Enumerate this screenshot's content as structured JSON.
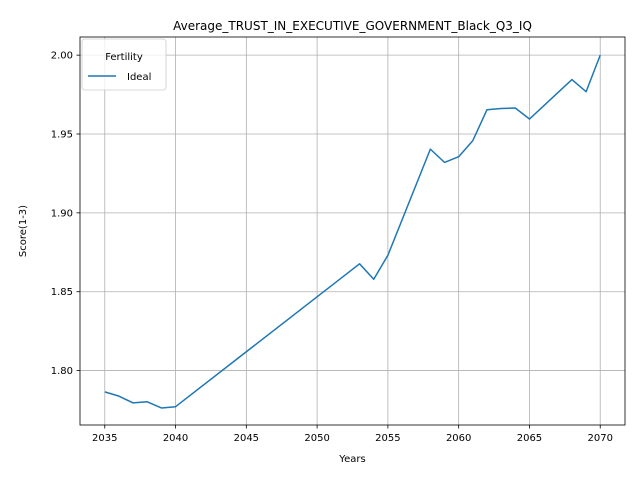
{
  "chart_data": {
    "type": "line",
    "title": "Average_TRUST_IN_EXECUTIVE_GOVERNMENT_Black_Q3_IQ",
    "xlabel": "Years",
    "ylabel": "Score(1-3)",
    "xlim": [
      2033.25,
      2071.75
    ],
    "ylim": [
      1.7655,
      2.0115
    ],
    "xticks": [
      2035,
      2040,
      2045,
      2050,
      2055,
      2060,
      2065,
      2070
    ],
    "yticks": [
      1.8,
      1.85,
      1.9,
      1.95,
      2.0
    ],
    "ytick_labels": [
      "1.80",
      "1.85",
      "1.90",
      "1.95",
      "2.00"
    ],
    "grid": true,
    "legend": {
      "title": "Fertility",
      "placement": "top-left"
    },
    "series": [
      {
        "name": "Ideal",
        "color": "#1f77b4",
        "x": [
          2035,
          2036,
          2037,
          2038,
          2039,
          2040,
          2053,
          2054,
          2055,
          2058,
          2059,
          2060,
          2061,
          2062,
          2063,
          2064,
          2065,
          2068,
          2069,
          2070
        ],
        "y": [
          1.7865,
          1.7838,
          1.7795,
          1.7802,
          1.7763,
          1.7771,
          1.8677,
          1.8579,
          1.8731,
          1.9404,
          1.932,
          1.9356,
          1.9458,
          1.9654,
          1.9662,
          1.9665,
          1.9595,
          1.9845,
          1.9768,
          2.0
        ]
      }
    ]
  }
}
